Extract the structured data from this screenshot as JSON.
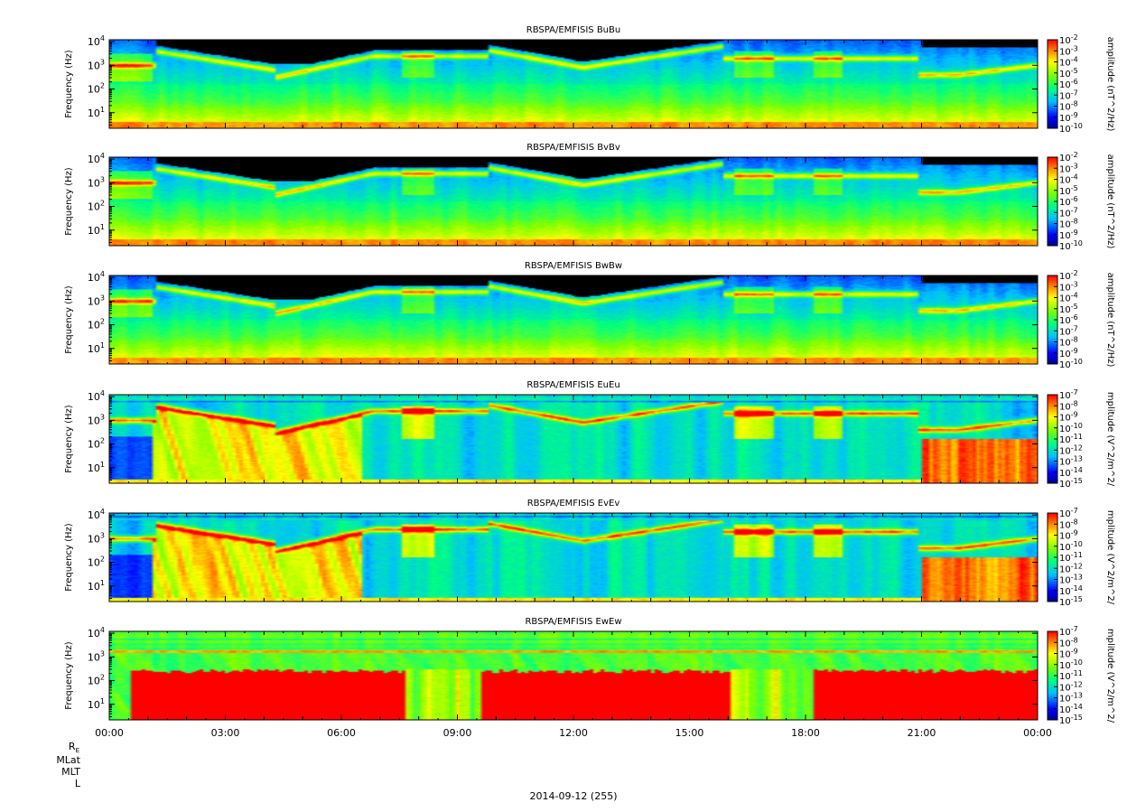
{
  "figure": {
    "date_label": "2014-09-12 (255)",
    "ephemeris_labels": [
      "R",
      "MLat",
      "MLT",
      "L"
    ],
    "ephemeris_subscript": "E"
  },
  "chart_data": [
    {
      "type": "heatmap",
      "title": "RBSPA/EMFISIS  BuBu",
      "ylabel": "Frequency (Hz)",
      "yscale": "log",
      "ylim": [
        2.2,
        12000
      ],
      "yticks": [
        10,
        100,
        1000,
        10000
      ],
      "ytick_labels": [
        [
          "10",
          "1"
        ],
        [
          "10",
          "2"
        ],
        [
          "10",
          "3"
        ],
        [
          "10",
          "4"
        ]
      ],
      "colorbar_label": "amplitude (nT^2/Hz)",
      "color_range_exponents": [
        -10,
        -2
      ],
      "colorbar_ticks": [
        [
          "10",
          "-2"
        ],
        [
          "10",
          "-3"
        ],
        [
          "10",
          "-4"
        ],
        [
          "10",
          "-5"
        ],
        [
          "10",
          "-6"
        ],
        [
          "10",
          "-7"
        ],
        [
          "10",
          "-8"
        ],
        [
          "10",
          "-9"
        ],
        [
          "10",
          "-10"
        ]
      ],
      "colors": {
        "low": "#00008b",
        "high": "#ff0000",
        "no_data": "#000000"
      }
    },
    {
      "type": "heatmap",
      "title": "RBSPA/EMFISIS  BvBv",
      "ylabel": "Frequency (Hz)",
      "yscale": "log",
      "ylim": [
        2.2,
        12000
      ],
      "yticks": [
        10,
        100,
        1000,
        10000
      ],
      "ytick_labels": [
        [
          "10",
          "1"
        ],
        [
          "10",
          "2"
        ],
        [
          "10",
          "3"
        ],
        [
          "10",
          "4"
        ]
      ],
      "colorbar_label": "amplitude (nT^2/Hz)",
      "color_range_exponents": [
        -10,
        -2
      ],
      "colorbar_ticks": [
        [
          "10",
          "-2"
        ],
        [
          "10",
          "-3"
        ],
        [
          "10",
          "-4"
        ],
        [
          "10",
          "-5"
        ],
        [
          "10",
          "-6"
        ],
        [
          "10",
          "-7"
        ],
        [
          "10",
          "-8"
        ],
        [
          "10",
          "-9"
        ],
        [
          "10",
          "-10"
        ]
      ],
      "colors": {
        "low": "#00008b",
        "high": "#ff0000",
        "no_data": "#000000"
      }
    },
    {
      "type": "heatmap",
      "title": "RBSPA/EMFISIS  BwBw",
      "ylabel": "Frequency (Hz)",
      "yscale": "log",
      "ylim": [
        2.2,
        12000
      ],
      "yticks": [
        10,
        100,
        1000,
        10000
      ],
      "ytick_labels": [
        [
          "10",
          "1"
        ],
        [
          "10",
          "2"
        ],
        [
          "10",
          "3"
        ],
        [
          "10",
          "4"
        ]
      ],
      "colorbar_label": "amplitude (nT^2/Hz)",
      "color_range_exponents": [
        -10,
        -2
      ],
      "colorbar_ticks": [
        [
          "10",
          "-2"
        ],
        [
          "10",
          "-3"
        ],
        [
          "10",
          "-4"
        ],
        [
          "10",
          "-5"
        ],
        [
          "10",
          "-6"
        ],
        [
          "10",
          "-7"
        ],
        [
          "10",
          "-8"
        ],
        [
          "10",
          "-9"
        ],
        [
          "10",
          "-10"
        ]
      ],
      "colors": {
        "low": "#00008b",
        "high": "#ff0000",
        "no_data": "#000000"
      }
    },
    {
      "type": "heatmap",
      "title": "RBSPA/EMFISIS  EuEu",
      "ylabel": "Frequency (Hz)",
      "yscale": "log",
      "ylim": [
        2.2,
        12000
      ],
      "yticks": [
        10,
        100,
        1000,
        10000
      ],
      "ytick_labels": [
        [
          "10",
          "1"
        ],
        [
          "10",
          "2"
        ],
        [
          "10",
          "3"
        ],
        [
          "10",
          "4"
        ]
      ],
      "colorbar_label": "mplitude (V^2/m^2/",
      "color_range_exponents": [
        -15,
        -7
      ],
      "colorbar_ticks": [
        [
          "10",
          "-7"
        ],
        [
          "10",
          "-8"
        ],
        [
          "10",
          "-9"
        ],
        [
          "10",
          "-10"
        ],
        [
          "10",
          "-11"
        ],
        [
          "10",
          "-12"
        ],
        [
          "10",
          "-13"
        ],
        [
          "10",
          "-14"
        ],
        [
          "10",
          "-15"
        ]
      ],
      "colors": {
        "low": "#00008b",
        "high": "#ff0000",
        "no_data": "#000000"
      }
    },
    {
      "type": "heatmap",
      "title": "RBSPA/EMFISIS  EvEv",
      "ylabel": "Frequency (Hz)",
      "yscale": "log",
      "ylim": [
        2.2,
        12000
      ],
      "yticks": [
        10,
        100,
        1000,
        10000
      ],
      "ytick_labels": [
        [
          "10",
          "1"
        ],
        [
          "10",
          "2"
        ],
        [
          "10",
          "3"
        ],
        [
          "10",
          "4"
        ]
      ],
      "colorbar_label": "mplitude (V^2/m^2/",
      "color_range_exponents": [
        -15,
        -7
      ],
      "colorbar_ticks": [
        [
          "10",
          "-7"
        ],
        [
          "10",
          "-8"
        ],
        [
          "10",
          "-9"
        ],
        [
          "10",
          "-10"
        ],
        [
          "10",
          "-11"
        ],
        [
          "10",
          "-12"
        ],
        [
          "10",
          "-13"
        ],
        [
          "10",
          "-14"
        ],
        [
          "10",
          "-15"
        ]
      ],
      "colors": {
        "low": "#00008b",
        "high": "#ff0000",
        "no_data": "#000000"
      }
    },
    {
      "type": "heatmap",
      "title": "RBSPA/EMFISIS  EwEw",
      "ylabel": "Frequency (Hz)",
      "yscale": "log",
      "ylim": [
        2.2,
        12000
      ],
      "yticks": [
        10,
        100,
        1000,
        10000
      ],
      "ytick_labels": [
        [
          "10",
          "1"
        ],
        [
          "10",
          "2"
        ],
        [
          "10",
          "3"
        ],
        [
          "10",
          "4"
        ]
      ],
      "colorbar_label": "mplitude (V^2/m^2/",
      "color_range_exponents": [
        -15,
        -7
      ],
      "colorbar_ticks": [
        [
          "10",
          "-7"
        ],
        [
          "10",
          "-8"
        ],
        [
          "10",
          "-9"
        ],
        [
          "10",
          "-10"
        ],
        [
          "10",
          "-11"
        ],
        [
          "10",
          "-12"
        ],
        [
          "10",
          "-13"
        ],
        [
          "10",
          "-14"
        ],
        [
          "10",
          "-15"
        ]
      ],
      "colors": {
        "low": "#00008b",
        "high": "#ff0000",
        "no_data": "#000000"
      },
      "x_axis": {
        "ticks": [
          "00:00",
          "03:00",
          "06:00",
          "09:00",
          "12:00",
          "15:00",
          "18:00",
          "21:00",
          "00:00"
        ],
        "range_hours": [
          0,
          24
        ]
      }
    }
  ]
}
